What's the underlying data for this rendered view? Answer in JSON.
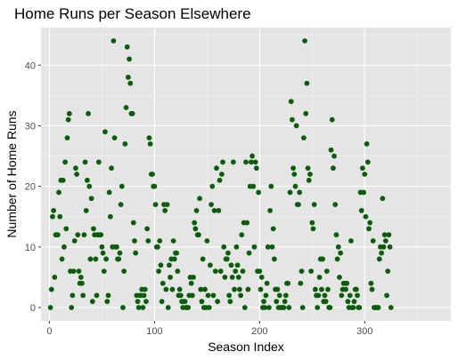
{
  "chart_data": {
    "type": "scatter",
    "title": "Home Runs per Season Elsewhere",
    "xlabel": "Season Index",
    "ylabel": "Number of Home Runs",
    "xlim": [
      -8,
      382
    ],
    "ylim": [
      -2.2,
      46.2
    ],
    "xticks": [
      0,
      100,
      200,
      300
    ],
    "yticks": [
      0,
      10,
      20,
      30,
      40
    ],
    "grid": true,
    "panel_color": "#e5e5e5",
    "point_color": "#0b5d0b",
    "series": [
      {
        "values": [
          [
            1,
            0
          ],
          [
            2,
            3
          ],
          [
            3,
            15
          ],
          [
            4,
            16
          ],
          [
            5,
            5
          ],
          [
            6,
            12
          ],
          [
            7,
            12
          ],
          [
            8,
            12
          ],
          [
            9,
            19
          ],
          [
            10,
            15
          ],
          [
            11,
            21
          ],
          [
            12,
            8
          ],
          [
            13,
            21
          ],
          [
            14,
            10
          ],
          [
            15,
            24
          ],
          [
            16,
            13
          ],
          [
            17,
            28
          ],
          [
            18,
            31
          ],
          [
            19,
            32
          ],
          [
            20,
            6
          ],
          [
            21,
            0
          ],
          [
            22,
            2
          ],
          [
            23,
            6
          ],
          [
            24,
            11
          ],
          [
            25,
            23
          ],
          [
            26,
            22
          ],
          [
            27,
            12
          ],
          [
            28,
            6
          ],
          [
            29,
            4
          ],
          [
            30,
            5
          ],
          [
            31,
            4
          ],
          [
            32,
            2
          ],
          [
            33,
            12
          ],
          [
            34,
            24
          ],
          [
            35,
            16
          ],
          [
            36,
            21
          ],
          [
            37,
            32
          ],
          [
            38,
            20
          ],
          [
            39,
            8
          ],
          [
            40,
            18
          ],
          [
            41,
            1
          ],
          [
            42,
            13
          ],
          [
            43,
            12
          ],
          [
            44,
            8
          ],
          [
            45,
            2
          ],
          [
            46,
            12
          ],
          [
            47,
            24
          ],
          [
            48,
            12
          ],
          [
            49,
            12
          ],
          [
            50,
            10
          ],
          [
            51,
            9
          ],
          [
            52,
            6
          ],
          [
            53,
            29
          ],
          [
            54,
            8
          ],
          [
            55,
            1
          ],
          [
            56,
            2
          ],
          [
            57,
            19
          ],
          [
            58,
            15
          ],
          [
            59,
            23
          ],
          [
            60,
            10
          ],
          [
            61,
            44
          ],
          [
            62,
            28
          ],
          [
            63,
            10
          ],
          [
            64,
            10
          ],
          [
            65,
            8
          ],
          [
            66,
            8
          ],
          [
            67,
            9
          ],
          [
            68,
            17
          ],
          [
            69,
            20
          ],
          [
            70,
            0
          ],
          [
            71,
            6
          ],
          [
            72,
            27
          ],
          [
            73,
            33
          ],
          [
            74,
            43
          ],
          [
            75,
            38
          ],
          [
            76,
            41
          ],
          [
            77,
            37
          ],
          [
            78,
            32
          ],
          [
            79,
            32
          ],
          [
            80,
            14
          ],
          [
            81,
            11
          ],
          [
            82,
            9
          ],
          [
            83,
            2
          ],
          [
            84,
            1
          ],
          [
            85,
            0
          ],
          [
            86,
            2
          ],
          [
            87,
            2
          ],
          [
            88,
            3
          ],
          [
            89,
            0
          ],
          [
            90,
            2
          ],
          [
            91,
            3
          ],
          [
            92,
            1
          ],
          [
            93,
            13
          ],
          [
            94,
            11
          ],
          [
            95,
            28
          ],
          [
            96,
            27
          ],
          [
            97,
            22
          ],
          [
            98,
            22
          ],
          [
            99,
            20
          ],
          [
            100,
            20
          ],
          [
            101,
            17
          ],
          [
            102,
            10
          ],
          [
            103,
            10
          ],
          [
            104,
            6
          ],
          [
            105,
            11
          ],
          [
            106,
            7
          ],
          [
            107,
            1
          ],
          [
            108,
            4
          ],
          [
            109,
            17
          ],
          [
            110,
            16
          ],
          [
            111,
            3
          ],
          [
            112,
            17
          ],
          [
            113,
            0
          ],
          [
            114,
            7
          ],
          [
            115,
            5
          ],
          [
            116,
            8
          ],
          [
            117,
            3
          ],
          [
            118,
            11
          ],
          [
            119,
            8
          ],
          [
            120,
            9
          ],
          [
            121,
            9
          ],
          [
            122,
            6
          ],
          [
            123,
            2
          ],
          [
            124,
            3
          ],
          [
            125,
            2
          ],
          [
            126,
            1
          ],
          [
            127,
            0
          ],
          [
            128,
            1
          ],
          [
            129,
            1
          ],
          [
            130,
            0
          ],
          [
            131,
            0
          ],
          [
            132,
            0
          ],
          [
            133,
            2
          ],
          [
            134,
            5
          ],
          [
            135,
            4
          ],
          [
            136,
            2
          ],
          [
            137,
            5
          ],
          [
            138,
            14
          ],
          [
            139,
            13
          ],
          [
            140,
            16
          ],
          [
            141,
            12
          ],
          [
            142,
            12
          ],
          [
            143,
            18
          ],
          [
            144,
            3
          ],
          [
            145,
            1
          ],
          [
            146,
            8
          ],
          [
            147,
            0
          ],
          [
            148,
            3
          ],
          [
            149,
            0
          ],
          [
            150,
            11
          ],
          [
            151,
            2
          ],
          [
            152,
            0
          ],
          [
            153,
            7
          ],
          [
            154,
            17
          ],
          [
            155,
            20
          ],
          [
            156,
            2
          ],
          [
            157,
            16
          ],
          [
            158,
            6
          ],
          [
            159,
            23
          ],
          [
            160,
            1
          ],
          [
            161,
            16
          ],
          [
            162,
            21
          ],
          [
            163,
            6
          ],
          [
            164,
            22
          ],
          [
            165,
            24
          ],
          [
            166,
            10
          ],
          [
            167,
            5
          ],
          [
            168,
            8
          ],
          [
            169,
            8
          ],
          [
            170,
            9
          ],
          [
            171,
            2
          ],
          [
            172,
            1
          ],
          [
            173,
            7
          ],
          [
            174,
            5
          ],
          [
            175,
            24
          ],
          [
            176,
            3
          ],
          [
            177,
            6
          ],
          [
            178,
            10
          ],
          [
            179,
            7
          ],
          [
            180,
            5
          ],
          [
            181,
            3
          ],
          [
            182,
            2
          ],
          [
            183,
            12
          ],
          [
            184,
            6
          ],
          [
            185,
            14
          ],
          [
            186,
            0
          ],
          [
            187,
            24
          ],
          [
            188,
            14
          ],
          [
            189,
            3
          ],
          [
            190,
            9
          ],
          [
            191,
            20
          ],
          [
            192,
            24
          ],
          [
            193,
            25
          ],
          [
            194,
            20
          ],
          [
            195,
            10
          ],
          [
            196,
            24
          ],
          [
            197,
            23
          ],
          [
            198,
            6
          ],
          [
            199,
            19
          ],
          [
            200,
            6
          ],
          [
            201,
            3
          ],
          [
            202,
            5
          ],
          [
            203,
            0
          ],
          [
            204,
            1
          ],
          [
            205,
            0
          ],
          [
            206,
            2
          ],
          [
            207,
            4
          ],
          [
            208,
            10
          ],
          [
            209,
            0
          ],
          [
            210,
            16
          ],
          [
            211,
            20
          ],
          [
            212,
            10
          ],
          [
            213,
            13
          ],
          [
            214,
            8
          ],
          [
            215,
            3
          ],
          [
            216,
            1
          ],
          [
            217,
            3
          ],
          [
            218,
            0
          ],
          [
            219,
            2
          ],
          [
            220,
            0
          ],
          [
            221,
            0
          ],
          [
            222,
            0
          ],
          [
            223,
            0
          ],
          [
            224,
            1
          ],
          [
            225,
            2
          ],
          [
            226,
            4
          ],
          [
            227,
            4
          ],
          [
            228,
            0
          ],
          [
            229,
            19
          ],
          [
            230,
            34
          ],
          [
            231,
            31
          ],
          [
            232,
            23
          ],
          [
            233,
            22
          ],
          [
            234,
            20
          ],
          [
            235,
            30
          ],
          [
            236,
            17
          ],
          [
            237,
            17
          ],
          [
            238,
            19
          ],
          [
            239,
            4
          ],
          [
            240,
            6
          ],
          [
            241,
            0
          ],
          [
            242,
            28
          ],
          [
            243,
            44
          ],
          [
            244,
            32
          ],
          [
            245,
            37
          ],
          [
            246,
            23
          ],
          [
            247,
            21
          ],
          [
            248,
            22
          ],
          [
            249,
            6
          ],
          [
            250,
            14
          ],
          [
            251,
            13
          ],
          [
            252,
            17
          ],
          [
            253,
            3
          ],
          [
            254,
            2
          ],
          [
            255,
            0
          ],
          [
            256,
            2
          ],
          [
            257,
            5
          ],
          [
            258,
            8
          ],
          [
            259,
            3
          ],
          [
            260,
            8
          ],
          [
            261,
            1
          ],
          [
            262,
            2
          ],
          [
            263,
            1
          ],
          [
            264,
            6
          ],
          [
            265,
            3
          ],
          [
            266,
            0
          ],
          [
            267,
            0
          ],
          [
            268,
            26
          ],
          [
            269,
            31
          ],
          [
            270,
            23
          ],
          [
            271,
            25
          ],
          [
            272,
            17
          ],
          [
            273,
            12
          ],
          [
            274,
            8
          ],
          [
            275,
            10
          ],
          [
            276,
            5
          ],
          [
            277,
            9
          ],
          [
            278,
            2
          ],
          [
            279,
            3
          ],
          [
            280,
            4
          ],
          [
            281,
            4
          ],
          [
            282,
            3
          ],
          [
            283,
            4
          ],
          [
            284,
            1
          ],
          [
            285,
            0
          ],
          [
            286,
            2
          ],
          [
            287,
            11
          ],
          [
            288,
            0
          ],
          [
            289,
            0
          ],
          [
            290,
            1
          ],
          [
            291,
            3
          ],
          [
            292,
            3
          ],
          [
            293,
            2
          ],
          [
            294,
            0
          ],
          [
            295,
            0
          ],
          [
            296,
            19
          ],
          [
            297,
            16
          ],
          [
            298,
            23
          ],
          [
            299,
            19
          ],
          [
            300,
            22
          ],
          [
            301,
            15
          ],
          [
            302,
            27
          ],
          [
            303,
            24
          ],
          [
            304,
            13
          ],
          [
            305,
            14
          ],
          [
            306,
            4
          ],
          [
            307,
            3
          ],
          [
            308,
            11
          ],
          [
            309,
            0
          ],
          [
            310,
            0
          ],
          [
            311,
            0
          ],
          [
            312,
            0
          ],
          [
            313,
            0
          ],
          [
            314,
            8
          ],
          [
            315,
            10
          ],
          [
            316,
            9
          ],
          [
            317,
            18
          ],
          [
            318,
            10
          ],
          [
            319,
            12
          ],
          [
            320,
            11
          ],
          [
            321,
            2
          ],
          [
            322,
            6
          ],
          [
            323,
            12
          ],
          [
            324,
            10
          ],
          [
            325,
            0
          ]
        ]
      }
    ]
  }
}
